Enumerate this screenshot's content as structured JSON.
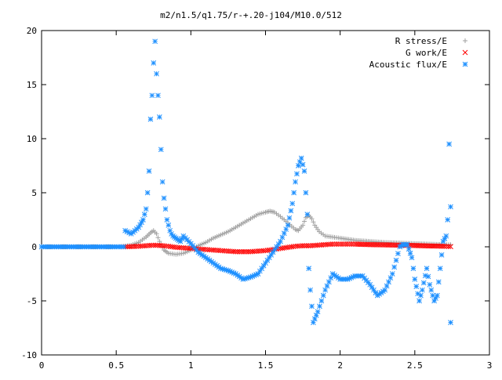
{
  "chart_data": {
    "type": "scatter",
    "title": "m2/n1.5/q1.75/r-+.20-j104/M10.0/512",
    "xlabel": "",
    "ylabel": "",
    "xlim": [
      0,
      3
    ],
    "ylim": [
      -10,
      20
    ],
    "x_ticks": [
      0,
      0.5,
      1,
      1.5,
      2,
      2.5,
      3
    ],
    "x_tick_labels": [
      "0",
      "0.5",
      "1",
      "1.5",
      "2",
      "2.5",
      "3"
    ],
    "y_ticks": [
      -10,
      -5,
      0,
      5,
      10,
      15,
      20
    ],
    "y_tick_labels": [
      "-10",
      "-5",
      "0",
      "5",
      "10",
      "15",
      "20"
    ],
    "grid": false,
    "legend_position": "top-right",
    "series": [
      {
        "name": "R stress/E",
        "marker": "+",
        "color": "#a0a0a0",
        "x": [
          0.0,
          0.1,
          0.2,
          0.3,
          0.4,
          0.5,
          0.55,
          0.6,
          0.65,
          0.7,
          0.73,
          0.75,
          0.77,
          0.79,
          0.82,
          0.85,
          0.9,
          0.95,
          1.0,
          1.05,
          1.1,
          1.15,
          1.2,
          1.25,
          1.3,
          1.35,
          1.4,
          1.45,
          1.5,
          1.53,
          1.56,
          1.6,
          1.65,
          1.7,
          1.72,
          1.75,
          1.77,
          1.79,
          1.81,
          1.83,
          1.86,
          1.9,
          1.95,
          2.0,
          2.1,
          2.2,
          2.3,
          2.4,
          2.5,
          2.6,
          2.7,
          2.74
        ],
        "y": [
          0,
          0,
          0,
          0,
          0,
          0,
          0.05,
          0.15,
          0.4,
          0.9,
          1.3,
          1.5,
          1.2,
          0.5,
          -0.3,
          -0.6,
          -0.7,
          -0.6,
          -0.3,
          0.1,
          0.4,
          0.8,
          1.1,
          1.4,
          1.8,
          2.2,
          2.6,
          3.0,
          3.2,
          3.3,
          3.2,
          2.8,
          2.2,
          1.6,
          1.5,
          2.0,
          2.7,
          2.9,
          2.6,
          2.0,
          1.4,
          1.0,
          0.9,
          0.8,
          0.6,
          0.5,
          0.4,
          0.35,
          0.3,
          0.25,
          0.2,
          0.2
        ]
      },
      {
        "name": "G work/E",
        "marker": "x",
        "color": "#ff0000",
        "x": [
          0.55,
          0.6,
          0.65,
          0.7,
          0.75,
          0.8,
          0.85,
          0.9,
          0.95,
          1.0,
          1.05,
          1.1,
          1.15,
          1.2,
          1.25,
          1.3,
          1.35,
          1.4,
          1.45,
          1.5,
          1.55,
          1.6,
          1.65,
          1.7,
          1.75,
          1.8,
          1.85,
          1.9,
          1.95,
          2.0,
          2.05,
          2.1,
          2.2,
          2.3,
          2.4,
          2.5,
          2.6,
          2.7,
          2.74
        ],
        "y": [
          0,
          0.02,
          0.05,
          0.1,
          0.15,
          0.12,
          0.05,
          -0.05,
          -0.1,
          -0.15,
          -0.2,
          -0.25,
          -0.3,
          -0.35,
          -0.4,
          -0.45,
          -0.45,
          -0.45,
          -0.4,
          -0.35,
          -0.25,
          -0.15,
          -0.05,
          0.05,
          0.1,
          0.1,
          0.15,
          0.2,
          0.25,
          0.25,
          0.25,
          0.25,
          0.2,
          0.18,
          0.15,
          0.12,
          0.08,
          0.05,
          0.02
        ]
      },
      {
        "name": "Acoustic flux/E",
        "marker": "*",
        "color": "#1e90ff",
        "x": [
          0.0,
          0.05,
          0.1,
          0.15,
          0.2,
          0.25,
          0.3,
          0.35,
          0.4,
          0.45,
          0.5,
          0.55,
          0.56,
          0.6,
          0.65,
          0.68,
          0.7,
          0.71,
          0.72,
          0.73,
          0.74,
          0.75,
          0.76,
          0.77,
          0.78,
          0.79,
          0.8,
          0.81,
          0.82,
          0.83,
          0.84,
          0.85,
          0.86,
          0.87,
          0.88,
          0.9,
          0.93,
          0.95,
          1.0,
          1.05,
          1.1,
          1.15,
          1.2,
          1.25,
          1.3,
          1.35,
          1.4,
          1.45,
          1.5,
          1.55,
          1.6,
          1.65,
          1.68,
          1.7,
          1.72,
          1.74,
          1.76,
          1.78,
          1.79,
          1.8,
          1.82,
          1.85,
          1.9,
          1.95,
          2.0,
          2.05,
          2.1,
          2.15,
          2.2,
          2.25,
          2.3,
          2.35,
          2.4,
          2.42,
          2.45,
          2.48,
          2.5,
          2.53,
          2.55,
          2.58,
          2.6,
          2.63,
          2.65,
          2.67,
          2.69,
          2.71,
          2.72,
          2.73,
          2.74
        ],
        "y": [
          0,
          0,
          0,
          0,
          0,
          0,
          0,
          0,
          0,
          0,
          0,
          0,
          1.5,
          1.2,
          1.8,
          2.5,
          3.5,
          5.0,
          7.0,
          11.8,
          14.0,
          17.0,
          19.0,
          16.0,
          14.0,
          12.0,
          9.0,
          6.0,
          4.5,
          3.5,
          2.5,
          2.0,
          1.5,
          1.2,
          1.0,
          0.8,
          0.5,
          1.0,
          0.3,
          -0.5,
          -1.0,
          -1.5,
          -2.0,
          -2.2,
          -2.5,
          -3.0,
          -2.8,
          -2.5,
          -1.5,
          -0.5,
          0.5,
          2.0,
          4.0,
          6.0,
          7.5,
          8.2,
          7.0,
          3.0,
          -2.0,
          -4.0,
          -7.0,
          -6.0,
          -4.0,
          -2.5,
          -3.0,
          -3.0,
          -2.7,
          -2.7,
          -3.5,
          -4.5,
          -4.0,
          -2.5,
          0.0,
          0.2,
          0.2,
          -1.0,
          -3.0,
          -5.0,
          -4.0,
          -2.0,
          -3.5,
          -5.0,
          -4.5,
          -2.0,
          0.5,
          1.0,
          2.5,
          9.5,
          3.7
        ]
      }
    ],
    "extra_points": {
      "series": "Acoustic flux/E",
      "x": [
        2.74
      ],
      "y": [
        -7.0
      ]
    }
  }
}
